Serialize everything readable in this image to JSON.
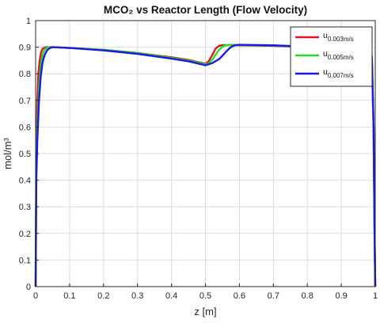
{
  "chart_data": {
    "type": "line",
    "title": "MCO₂ vs Reactor Length (Flow Velocity)",
    "xlabel": "z [m]",
    "ylabel": "mol/m³",
    "xlim": [
      0,
      1
    ],
    "ylim": [
      0,
      1
    ],
    "xticks": [
      "0",
      "0.1",
      "0.2",
      "0.3",
      "0.4",
      "0.5",
      "0.6",
      "0.7",
      "0.8",
      "0.9",
      "1"
    ],
    "yticks": [
      "0",
      "0.1",
      "0.2",
      "0.3",
      "0.4",
      "0.5",
      "0.6",
      "0.7",
      "0.8",
      "0.9",
      "1"
    ],
    "grid": true,
    "legend_position": "top-right",
    "series": [
      {
        "name": "u0.003m/s",
        "legend_main": "u",
        "legend_sub": "0.003m/s",
        "color": "#e0141e",
        "x": [
          0,
          0.002,
          0.005,
          0.008,
          0.012,
          0.016,
          0.02,
          0.025,
          0.03,
          0.035,
          0.04,
          0.05,
          0.1,
          0.2,
          0.3,
          0.4,
          0.45,
          0.5,
          0.51,
          0.52,
          0.53,
          0.54,
          0.55,
          0.56,
          0.58,
          0.6,
          0.7,
          0.8,
          0.9,
          0.95,
          0.99,
          0.995,
          0.998,
          1.0
        ],
        "y": [
          0,
          0.5,
          0.7,
          0.8,
          0.85,
          0.88,
          0.893,
          0.898,
          0.9,
          0.9,
          0.9,
          0.9,
          0.897,
          0.89,
          0.878,
          0.862,
          0.852,
          0.838,
          0.848,
          0.87,
          0.895,
          0.905,
          0.908,
          0.908,
          0.908,
          0.907,
          0.905,
          0.9,
          0.885,
          0.872,
          0.858,
          0.6,
          0.2,
          0
        ]
      },
      {
        "name": "u0.005m/s",
        "legend_main": "u",
        "legend_sub": "0.005m/s",
        "color": "#22dd22",
        "x": [
          0,
          0.002,
          0.005,
          0.01,
          0.015,
          0.02,
          0.025,
          0.03,
          0.035,
          0.04,
          0.05,
          0.1,
          0.2,
          0.3,
          0.4,
          0.45,
          0.5,
          0.51,
          0.52,
          0.53,
          0.54,
          0.55,
          0.56,
          0.57,
          0.58,
          0.6,
          0.7,
          0.8,
          0.9,
          0.95,
          0.99,
          0.995,
          0.998,
          1.0
        ],
        "y": [
          0,
          0.45,
          0.6,
          0.75,
          0.83,
          0.87,
          0.887,
          0.895,
          0.899,
          0.9,
          0.9,
          0.897,
          0.89,
          0.878,
          0.86,
          0.85,
          0.836,
          0.84,
          0.852,
          0.872,
          0.89,
          0.902,
          0.907,
          0.908,
          0.909,
          0.908,
          0.906,
          0.901,
          0.887,
          0.874,
          0.862,
          0.6,
          0.2,
          0
        ]
      },
      {
        "name": "u0.007m/s",
        "legend_main": "u",
        "legend_sub": "0.007m/s",
        "color": "#1a1ae0",
        "x": [
          0,
          0.002,
          0.005,
          0.01,
          0.015,
          0.02,
          0.025,
          0.03,
          0.035,
          0.04,
          0.045,
          0.05,
          0.1,
          0.2,
          0.3,
          0.4,
          0.45,
          0.5,
          0.52,
          0.54,
          0.55,
          0.56,
          0.57,
          0.58,
          0.59,
          0.6,
          0.7,
          0.8,
          0.9,
          0.95,
          0.99,
          0.995,
          0.998,
          1.0
        ],
        "y": [
          0,
          0.4,
          0.55,
          0.7,
          0.79,
          0.84,
          0.865,
          0.88,
          0.89,
          0.895,
          0.898,
          0.9,
          0.897,
          0.888,
          0.875,
          0.857,
          0.847,
          0.832,
          0.84,
          0.855,
          0.868,
          0.882,
          0.895,
          0.904,
          0.908,
          0.909,
          0.907,
          0.902,
          0.89,
          0.878,
          0.866,
          0.6,
          0.2,
          0
        ]
      }
    ]
  }
}
